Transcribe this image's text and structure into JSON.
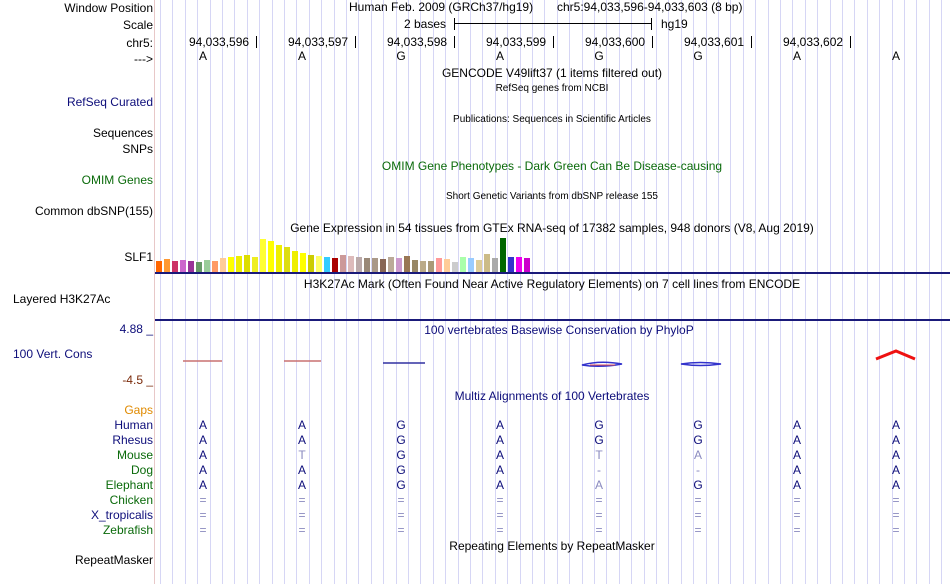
{
  "labels": {
    "window_position": "Window Position",
    "scale": "Scale",
    "chrom": "chr5:",
    "strand": "--->",
    "refseq": "RefSeq Curated",
    "sequences": "Sequences",
    "snps": "SNPs",
    "omim_genes": "OMIM Genes",
    "common_dbsnp": "Common dbSNP(155)",
    "slf1": "SLF1",
    "layered": "Layered H3K27Ac",
    "cons_max": "4.88 _",
    "cons_label": "100 Vert. Cons",
    "cons_min": "-4.5 _",
    "gaps": "Gaps",
    "repeatmasker": "RepeatMasker"
  },
  "header": {
    "assembly": "Human Feb. 2009 (GRCh37/hg19)",
    "position": "chr5:94,033,596-94,033,603 (8 bp)",
    "scale_text": "2 bases",
    "scale_db": "hg19"
  },
  "ruler": {
    "positions": [
      "94,033,596",
      "94,033,597",
      "94,033,598",
      "94,033,599",
      "94,033,600",
      "94,033,601",
      "94,033,602"
    ]
  },
  "sequence": [
    "A",
    "A",
    "G",
    "A",
    "G",
    "G",
    "A",
    "A"
  ],
  "track_titles": {
    "gencode": "GENCODE V49lift37 (1 items filtered out)",
    "refseq": "RefSeq genes from NCBI",
    "publications": "Publications: Sequences in Scientific Articles",
    "omim": "OMIM Gene Phenotypes - Dark Green Can Be Disease-causing",
    "dbsnp": "Short Genetic Variants from dbSNP release 155",
    "gtex": "Gene Expression in 54 tissues from GTEx RNA-seq of 17382 samples, 948 donors (V8, Aug 2019)",
    "h3k27ac": "H3K27Ac Mark (Often Found Near Active Regulatory Elements) on 7 cell lines from ENCODE",
    "phylop": "100 vertebrates Basewise Conservation by PhyloP",
    "multiz": "Multiz Alignments of 100 Vertebrates",
    "repeatmasker": "Repeating Elements by RepeatMasker"
  },
  "gtex_colors": [
    "#ff6600",
    "#ff9933",
    "#cc3366",
    "#cc66cc",
    "#993399",
    "#669966",
    "#99cc99",
    "#ff9966",
    "#ffcc99",
    "#ffff00",
    "#eeee00",
    "#dddd00",
    "#eeee22",
    "#ffff33",
    "#ffff00",
    "#eeee00",
    "#dddd11",
    "#eeee00",
    "#ffff00",
    "#cccc00",
    "#ffff66",
    "#33ccff",
    "#aa0000",
    "#cc9999",
    "#ddbbbb",
    "#bbaaaa",
    "#998877",
    "#aa9988",
    "#886655",
    "#bbaa99",
    "#cc99cc",
    "#997755",
    "#998866",
    "#bbaa88",
    "#aa9977",
    "#ff9999",
    "#ffcc99",
    "#cccccc",
    "#aaffaa",
    "#99ccff",
    "#ddcc99",
    "#ccbb88",
    "#aaaaaa",
    "#006600",
    "#3333cc",
    "#ee00ee",
    "#cc00cc"
  ],
  "gtex_values": [
    0.3,
    0.35,
    0.28,
    0.32,
    0.3,
    0.27,
    0.32,
    0.3,
    0.36,
    0.4,
    0.42,
    0.45,
    0.4,
    0.88,
    0.82,
    0.7,
    0.65,
    0.55,
    0.5,
    0.45,
    0.42,
    0.4,
    0.38,
    0.45,
    0.42,
    0.4,
    0.38,
    0.36,
    0.34,
    0.4,
    0.38,
    0.42,
    0.32,
    0.28,
    0.3,
    0.36,
    0.34,
    0.26,
    0.4,
    0.36,
    0.32,
    0.48,
    0.38,
    0.9,
    0.4,
    0.4,
    0.36
  ],
  "species": [
    {
      "name": "Human",
      "color": "#0d0d7a",
      "bases": [
        "A",
        "A",
        "G",
        "A",
        "G",
        "G",
        "A",
        "A"
      ]
    },
    {
      "name": "Rhesus",
      "color": "#0d0d7a",
      "bases": [
        "A",
        "A",
        "G",
        "A",
        "G",
        "G",
        "A",
        "A"
      ]
    },
    {
      "name": "Mouse",
      "color": "#0a6a0a",
      "bases": [
        "A",
        "T",
        "G",
        "A",
        "T",
        "A",
        "A",
        "A"
      ]
    },
    {
      "name": "Dog",
      "color": "#0a6a0a",
      "bases": [
        "A",
        "A",
        "G",
        "A",
        "-",
        "-",
        "A",
        "A"
      ]
    },
    {
      "name": "Elephant",
      "color": "#0a6a0a",
      "bases": [
        "A",
        "A",
        "G",
        "A",
        "A",
        "G",
        "A",
        "A"
      ]
    },
    {
      "name": "Chicken",
      "color": "#0a6a0a",
      "bases": [
        "=",
        "=",
        "=",
        "=",
        "=",
        "=",
        "=",
        "="
      ]
    },
    {
      "name": "X_tropicalis",
      "color": "#0d0d7a",
      "bases": [
        "=",
        "=",
        "=",
        "=",
        "=",
        "=",
        "=",
        "="
      ]
    },
    {
      "name": "Zebrafish",
      "color": "#0a6a0a",
      "bases": [
        "=",
        "=",
        "=",
        "=",
        "=",
        "=",
        "=",
        "="
      ]
    }
  ],
  "species_lowlight": [
    [
      false,
      false,
      false,
      false,
      false,
      false,
      false,
      false
    ],
    [
      false,
      false,
      false,
      false,
      false,
      false,
      false,
      false
    ],
    [
      false,
      true,
      false,
      false,
      true,
      true,
      false,
      false
    ],
    [
      false,
      false,
      false,
      false,
      true,
      true,
      false,
      false
    ],
    [
      false,
      false,
      false,
      false,
      true,
      false,
      false,
      false
    ],
    [
      true,
      true,
      true,
      true,
      true,
      true,
      true,
      true
    ],
    [
      true,
      true,
      true,
      true,
      true,
      true,
      true,
      true
    ],
    [
      true,
      true,
      true,
      true,
      true,
      true,
      true,
      true
    ]
  ]
}
